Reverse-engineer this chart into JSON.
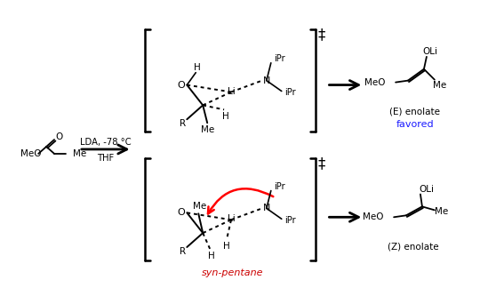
{
  "bg_color": "#ffffff",
  "fig_width": 5.4,
  "fig_height": 3.24,
  "dpi": 100,
  "reagent_label": "LDA, -78 °C",
  "solvent_label": "THF",
  "favored_label": "favored",
  "favored_color": "#1a1aff",
  "synpentane_label": "syn-pentane",
  "synpentane_color": "#cc0000",
  "e_enolate_label": "(E) enolate",
  "z_enolate_label": "(Z) enolate",
  "dagger": "‡"
}
